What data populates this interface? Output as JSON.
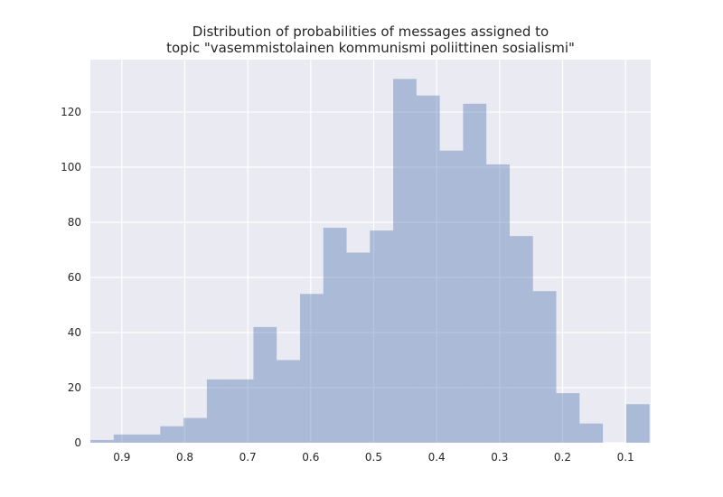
{
  "chart_data": {
    "type": "bar",
    "title": [
      "Distribution of probabilities of messages assigned to",
      "topic \"vasemmistolainen kommunismi poliittinen sosialismi\""
    ],
    "xlabel": "",
    "ylabel": "",
    "x_axis_reversed": true,
    "xlim": [
      0.95,
      0.06
    ],
    "ylim": [
      0,
      139
    ],
    "grid": true,
    "x_ticks": [
      0.9,
      0.8,
      0.7,
      0.6,
      0.5,
      0.4,
      0.3,
      0.2,
      0.1
    ],
    "x_tick_labels": [
      "0.9",
      "0.8",
      "0.7",
      "0.6",
      "0.5",
      "0.4",
      "0.3",
      "0.2",
      "0.1"
    ],
    "y_ticks": [
      0,
      20,
      40,
      60,
      80,
      100,
      120
    ],
    "y_tick_labels": [
      "0",
      "20",
      "40",
      "60",
      "80",
      "100",
      "120"
    ],
    "bin_edges": [
      0.95,
      0.913,
      0.876,
      0.839,
      0.802,
      0.765,
      0.728,
      0.691,
      0.654,
      0.617,
      0.58,
      0.543,
      0.506,
      0.469,
      0.432,
      0.395,
      0.358,
      0.321,
      0.284,
      0.247,
      0.21,
      0.173,
      0.136,
      0.099,
      0.062
    ],
    "values": [
      1,
      3,
      3,
      6,
      9,
      23,
      23,
      42,
      30,
      54,
      78,
      69,
      77,
      132,
      126,
      106,
      123,
      101,
      75,
      55,
      18,
      7,
      0,
      14
    ],
    "colors": {
      "bar": "#4c72b0",
      "bar_opacity": 0.4,
      "plot_background": "#eaeaf2",
      "grid": "#ffffff",
      "text": "#262626"
    }
  }
}
